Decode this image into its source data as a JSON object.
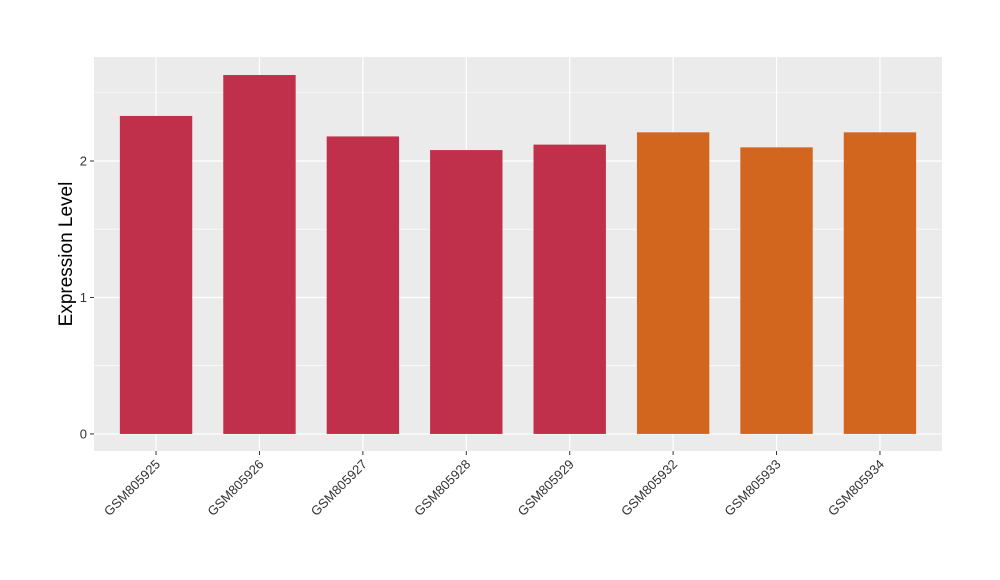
{
  "chart_data": {
    "type": "bar",
    "y_label": "Expression Level",
    "categories": [
      "GSM805925",
      "GSM805926",
      "GSM805927",
      "GSM805928",
      "GSM805929",
      "GSM805932",
      "GSM805933",
      "GSM805934"
    ],
    "values": [
      2.33,
      2.63,
      2.18,
      2.08,
      2.12,
      2.21,
      2.1,
      2.21
    ],
    "colors": [
      "#c1304a",
      "#c1304a",
      "#c1304a",
      "#c1304a",
      "#c1304a",
      "#d2661f",
      "#d2661f",
      "#d2661f"
    ],
    "ylim": [
      -0.125,
      2.762
    ],
    "yticks": [
      0,
      1,
      2
    ],
    "grid": true
  }
}
